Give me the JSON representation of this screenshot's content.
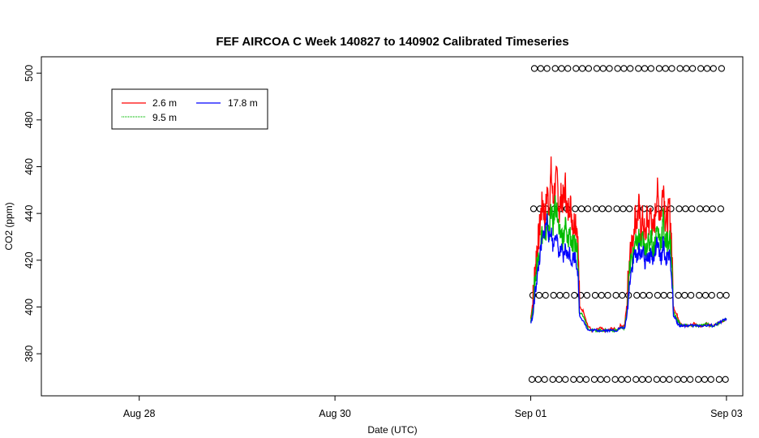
{
  "chart_data": {
    "type": "line",
    "title": "FEF AIRCOA C  Week 140827 to 140902  Calibrated Timeseries",
    "xlabel": "Date (UTC)",
    "ylabel": "CO2 (ppm)",
    "xlim": [
      "2014-08-27 00:00",
      "2014-09-03 04:00"
    ],
    "ylim": [
      362,
      507
    ],
    "x_ticks": [
      {
        "label": "Aug 28",
        "value": "2014-08-28"
      },
      {
        "label": "Aug 30",
        "value": "2014-08-30"
      },
      {
        "label": "Sep 01",
        "value": "2014-09-01"
      },
      {
        "label": "Sep 03",
        "value": "2014-09-03"
      }
    ],
    "y_ticks": [
      380,
      400,
      420,
      440,
      460,
      480,
      500
    ],
    "legend": {
      "placement": "top-left",
      "entries": [
        {
          "name": "2.6 m",
          "color": "#ff0000"
        },
        {
          "name": "9.5 m",
          "color": "#00bb00"
        },
        {
          "name": "17.8 m",
          "color": "#0000ff"
        }
      ]
    },
    "series": [
      {
        "name": "2.6 m",
        "color": "#ff0000",
        "x_hours_from_sep01": [
          0,
          0.5,
          1,
          1.5,
          2,
          2.5,
          3,
          3.5,
          4,
          4.5,
          5,
          5.5,
          6,
          6.5,
          7,
          7.5,
          8,
          8.5,
          9,
          9.5,
          10,
          10.5,
          11,
          11.5,
          12,
          13,
          14,
          15,
          16,
          17,
          18,
          19,
          20,
          21,
          22,
          23,
          23.5,
          24,
          24.5,
          25,
          25.5,
          26,
          26.5,
          27,
          27.5,
          28,
          28.5,
          29,
          29.5,
          30,
          30.5,
          31,
          31.5,
          32,
          32.5,
          33,
          33.5,
          34,
          34.5,
          35,
          35.5,
          36,
          36.5,
          37,
          38,
          39,
          40,
          41,
          42,
          43,
          44,
          45,
          46,
          47,
          48
        ],
        "values": [
          395,
          402,
          415,
          425,
          430,
          440,
          445,
          436,
          450,
          442,
          458,
          445,
          452,
          455,
          440,
          448,
          445,
          452,
          438,
          446,
          440,
          435,
          438,
          432,
          400,
          398,
          392,
          390,
          390,
          391,
          390,
          390,
          391,
          390,
          392,
          392,
          400,
          415,
          430,
          425,
          440,
          436,
          443,
          432,
          438,
          429,
          437,
          436,
          441,
          430,
          439,
          450,
          442,
          440,
          455,
          438,
          436,
          443,
          430,
          400,
          398,
          396,
          394,
          392,
          392,
          392,
          393,
          392,
          392,
          393,
          392,
          392,
          393,
          394,
          395
        ]
      },
      {
        "name": "9.5 m",
        "color": "#00bb00",
        "x_hours_from_sep01": [
          0,
          0.5,
          1,
          1.5,
          2,
          2.5,
          3,
          3.5,
          4,
          4.5,
          5,
          5.5,
          6,
          6.5,
          7,
          7.5,
          8,
          8.5,
          9,
          9.5,
          10,
          10.5,
          11,
          11.5,
          12,
          13,
          14,
          15,
          16,
          17,
          18,
          19,
          20,
          21,
          22,
          23,
          23.5,
          24,
          24.5,
          25,
          25.5,
          26,
          26.5,
          27,
          27.5,
          28,
          28.5,
          29,
          29.5,
          30,
          30.5,
          31,
          31.5,
          32,
          32.5,
          33,
          33.5,
          34,
          34.5,
          35,
          35.5,
          36,
          36.5,
          37,
          38,
          39,
          40,
          41,
          42,
          43,
          44,
          45,
          46,
          47,
          48
        ],
        "values": [
          394,
          399,
          410,
          418,
          422,
          430,
          432,
          426,
          438,
          432,
          442,
          434,
          445,
          440,
          430,
          432,
          428,
          436,
          426,
          433,
          428,
          425,
          427,
          423,
          398,
          396,
          391,
          390,
          390,
          390,
          390,
          390,
          390,
          390,
          391,
          391,
          397,
          410,
          420,
          420,
          428,
          425,
          430,
          426,
          429,
          422,
          428,
          426,
          432,
          424,
          428,
          434,
          430,
          428,
          438,
          427,
          428,
          430,
          423,
          398,
          396,
          394,
          393,
          392,
          392,
          392,
          392,
          392,
          392,
          393,
          392,
          392,
          393,
          394,
          395
        ]
      },
      {
        "name": "17.8 m",
        "color": "#0000ff",
        "x_hours_from_sep01": [
          0,
          0.5,
          1,
          1.5,
          2,
          2.5,
          3,
          3.5,
          4,
          4.5,
          5,
          5.5,
          6,
          6.5,
          7,
          7.5,
          8,
          8.5,
          9,
          9.5,
          10,
          10.5,
          11,
          11.5,
          12,
          13,
          14,
          15,
          16,
          17,
          18,
          19,
          20,
          21,
          22,
          23,
          23.5,
          24,
          24.5,
          25,
          25.5,
          26,
          26.5,
          27,
          27.5,
          28,
          28.5,
          29,
          29.5,
          30,
          30.5,
          31,
          31.5,
          32,
          32.5,
          33,
          33.5,
          34,
          34.5,
          35,
          35.5,
          36,
          36.5,
          37,
          38,
          39,
          40,
          41,
          42,
          43,
          44,
          45,
          46,
          47,
          48
        ],
        "values": [
          393,
          396,
          405,
          412,
          418,
          425,
          430,
          433,
          438,
          429,
          433,
          425,
          432,
          428,
          422,
          425,
          420,
          426,
          421,
          424,
          419,
          422,
          421,
          416,
          396,
          394,
          390,
          390,
          390,
          390,
          390,
          390,
          390,
          390,
          391,
          391,
          395,
          405,
          415,
          418,
          424,
          420,
          425,
          422,
          425,
          418,
          422,
          420,
          424,
          419,
          423,
          428,
          423,
          420,
          428,
          420,
          421,
          422,
          416,
          396,
          395,
          393,
          392,
          392,
          392,
          392,
          392,
          392,
          392,
          392,
          392,
          392,
          393,
          394,
          395
        ]
      }
    ],
    "calibration_markers": {
      "levels": [
        369,
        405,
        442,
        502
      ],
      "x_start_hours_from_sep01": 0,
      "x_end_hours_from_sep01": 48,
      "marker": "open-circle"
    },
    "axis_geometry": {
      "x_start": "2014-09-01"
    }
  }
}
